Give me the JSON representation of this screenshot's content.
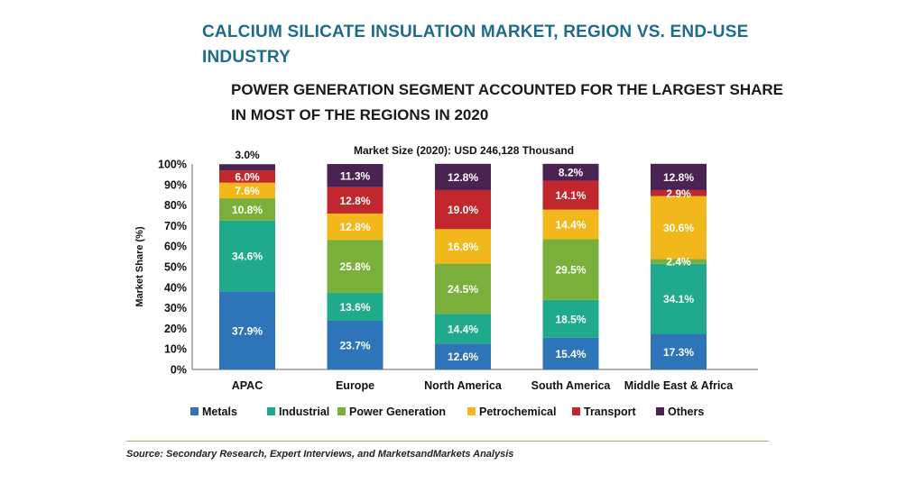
{
  "title": "CALCIUM SILICATE INSULATION MARKET, REGION VS. END-USE INDUSTRY",
  "subtitle": "POWER GENERATION SEGMENT ACCOUNTED FOR THE LARGEST SHARE IN MOST OF THE REGIONS IN 2020",
  "source": "Source: Secondary Research, Expert Interviews, and MarketsandMarkets Analysis",
  "colors": {
    "Metals": "#2e74b8",
    "Industrial": "#1faa8c",
    "Power Generation": "#7aaf3b",
    "Petrochemical": "#f2b71b",
    "Transport": "#c1272d",
    "Others": "#4b2353"
  },
  "chart_data": {
    "type": "bar",
    "stacked": true,
    "title": "Market Size (2020): USD 246,128 Thousand",
    "xlabel": "",
    "ylabel": "Market Share (%)",
    "ylim": [
      0,
      100
    ],
    "yticks": [
      "0%",
      "10%",
      "20%",
      "30%",
      "40%",
      "50%",
      "60%",
      "70%",
      "80%",
      "90%",
      "100%"
    ],
    "categories": [
      "APAC",
      "Europe",
      "North America",
      "South America",
      "Middle East & Africa"
    ],
    "series": [
      {
        "name": "Metals",
        "values": [
          37.9,
          23.7,
          12.6,
          15.4,
          17.3
        ],
        "labels": [
          "37.9%",
          "23.7%",
          "12.6%",
          "15.4%",
          "17.3%"
        ]
      },
      {
        "name": "Industrial",
        "values": [
          34.6,
          13.6,
          14.4,
          18.5,
          34.1
        ],
        "labels": [
          "34.6%",
          "13.6%",
          "14.4%",
          "18.5%",
          "34.1%"
        ]
      },
      {
        "name": "Power Generation",
        "values": [
          10.8,
          25.8,
          24.5,
          29.5,
          2.4
        ],
        "labels": [
          "10.8%",
          "25.8%",
          "24.5%",
          "29.5%",
          "2.4%"
        ]
      },
      {
        "name": "Petrochemical",
        "values": [
          7.6,
          12.8,
          16.8,
          14.4,
          30.6
        ],
        "labels": [
          "7.6%",
          "12.8%",
          "16.8%",
          "14.4%",
          "30.6%"
        ]
      },
      {
        "name": "Transport",
        "values": [
          6.0,
          12.8,
          19.0,
          14.1,
          2.9
        ],
        "labels": [
          "6.0%",
          "12.8%",
          "19.0%",
          "14.1%",
          "2.9%"
        ]
      },
      {
        "name": "Others",
        "values": [
          3.0,
          11.3,
          12.8,
          8.2,
          12.8
        ],
        "labels": [
          "3.0%",
          "11.3%",
          "12.8%",
          "8.2%",
          "12.8%"
        ]
      }
    ],
    "legend_position": "bottom",
    "grid": false
  }
}
